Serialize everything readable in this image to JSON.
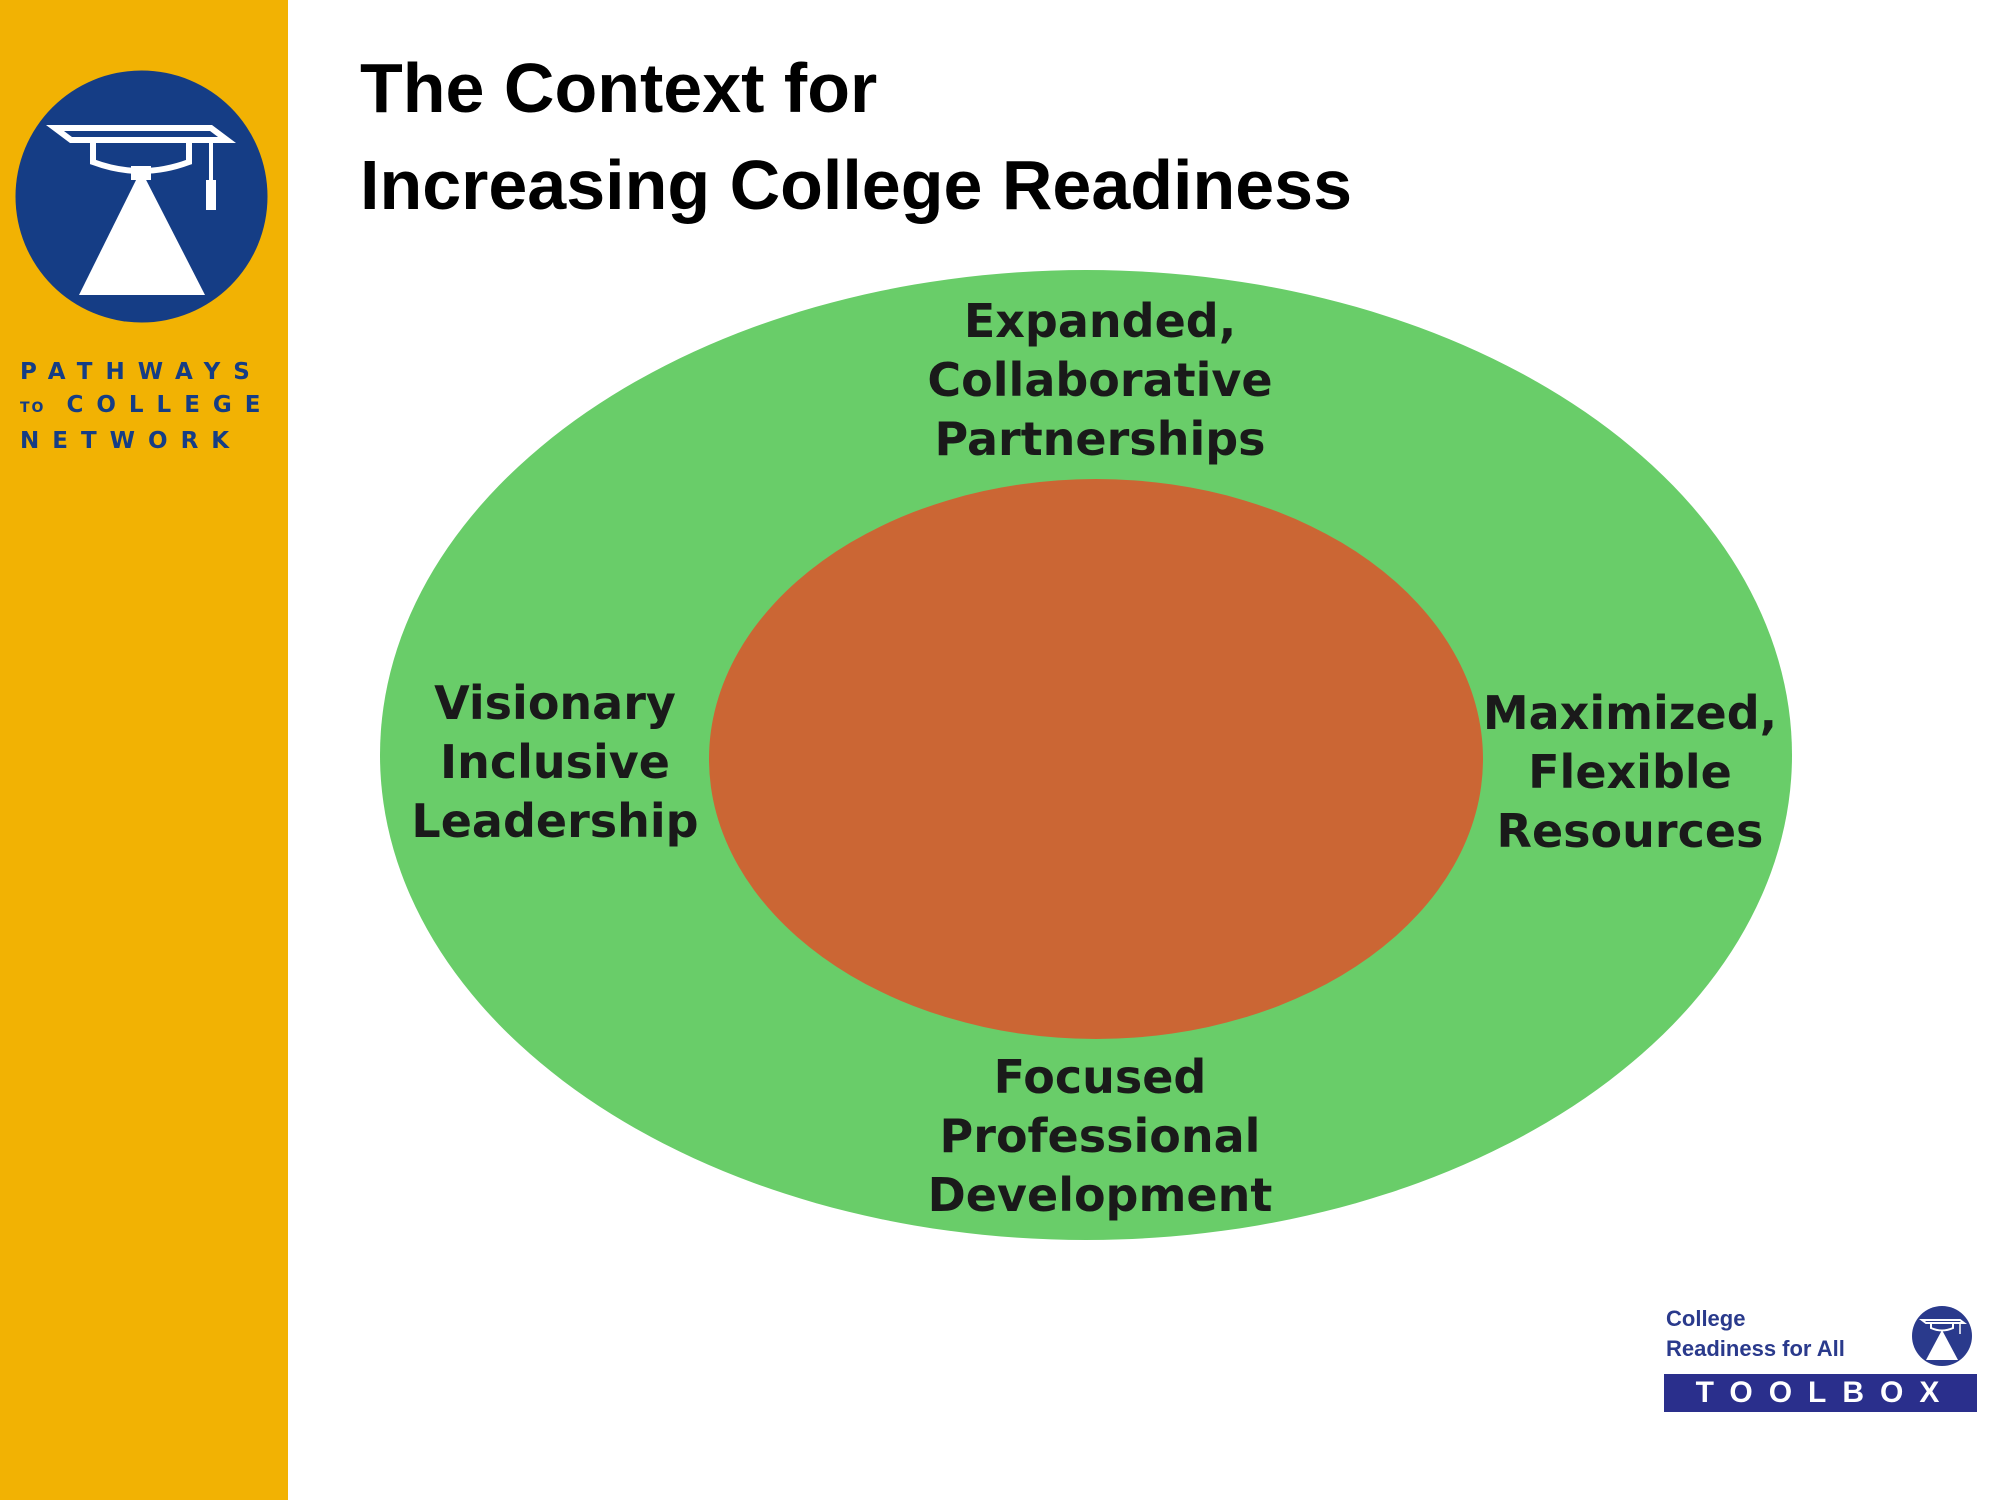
{
  "slide": {
    "title_line1": "The Context for",
    "title_line2": "Increasing College Readiness"
  },
  "sidebar": {
    "logo_icon": "graduation-cap-lamp-icon",
    "brand_line1": "PATHWAYS",
    "brand_line2_small": "TO",
    "brand_line2": "COLLEGE",
    "brand_line3": "NETWORK",
    "colors": {
      "background": "#f2b203",
      "brand_blue": "#153d85"
    }
  },
  "diagram": {
    "outer_ring_color": "#69cd69",
    "inner_core_color": "#cb6634",
    "labels": {
      "top": [
        "Expanded,",
        "Collaborative",
        "Partnerships"
      ],
      "left": [
        "Visionary",
        "Inclusive",
        "Leadership"
      ],
      "right": [
        "Maximized,",
        "Flexible",
        "Resources"
      ],
      "bottom": [
        "Focused",
        "Professional",
        "Development"
      ]
    }
  },
  "footer_logo": {
    "line1": "College",
    "line2": "Readiness for All",
    "word": "TOOLBOX",
    "icon": "graduation-cap-lamp-icon",
    "color": "#2a2f8c"
  }
}
